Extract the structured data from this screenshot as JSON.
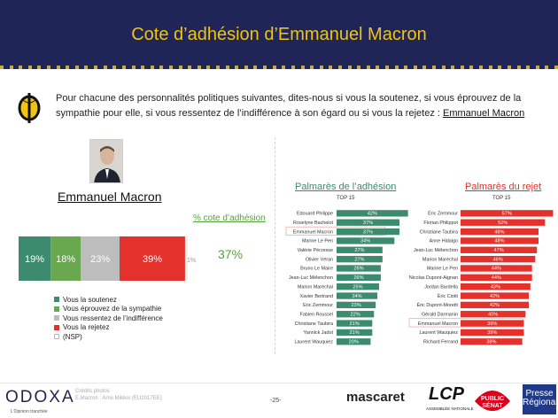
{
  "header": {
    "title": "Cote d’adhésion d’Emmanuel Macron"
  },
  "question": {
    "text": "Pour chacune des personnalités politiques suivantes, dites-nous si vous la soutenez, si vous éprouvez de la sympathie pour elle, si vous ressentez de l’indifférence à son égard ou si vous la rejetez : ",
    "subject": "Emmanuel Macron"
  },
  "left": {
    "person_name": "Emmanuel Macron",
    "pct_label": "% cote d’adhésion",
    "pct_value": "37%"
  },
  "stacked_bar": {
    "segments": [
      {
        "label": "19%",
        "value": 19,
        "color": "#3d8b6e"
      },
      {
        "label": "18%",
        "value": 18,
        "color": "#6aa84f"
      },
      {
        "label": "23%",
        "value": 23,
        "color": "#bdbdbd"
      },
      {
        "label": "39%",
        "value": 39,
        "color": "#e4312b"
      },
      {
        "label": "1%",
        "value": 1,
        "color": "#ffffff"
      }
    ]
  },
  "legend": {
    "items": [
      {
        "label": "Vous la soutenez",
        "color": "#3d8b6e"
      },
      {
        "label": "Vous éprouvez de la sympathie",
        "color": "#6aa84f"
      },
      {
        "label": "Vous ressentez de l’indifférence",
        "color": "#bdbdbd"
      },
      {
        "label": "Vous la rejetez",
        "color": "#e4312b"
      },
      {
        "label": "(NSP)",
        "color": "#ffffff"
      }
    ]
  },
  "chart_data": [
    {
      "type": "bar",
      "title": "Palmarès de l’adhésion",
      "subtitle": "TOP 15",
      "categories": [
        "Edouard Philippe",
        "Roselyne Bachelot",
        "Emmanuel Macron",
        "Marine Le Pen",
        "Valérie Pécresse",
        "Olivier Véran",
        "Bruno Le Maire",
        "Jean-Luc Mélenchon",
        "Marion Maréchal",
        "Xavier Bertrand",
        "Eric Zemmour",
        "Fabien Roussel",
        "Christiane Taubira",
        "Yannick Jadot",
        "Laurent Wauquiez"
      ],
      "values": [
        42,
        37,
        37,
        34,
        27,
        27,
        26,
        26,
        25,
        24,
        23,
        22,
        21,
        21,
        20
      ],
      "labels": [
        "42%",
        "37%",
        "37%",
        "34%",
        "27%",
        "27%",
        "26%",
        "26%",
        "25%",
        "24%",
        "23%",
        "22%",
        "21%",
        "21%",
        "20%"
      ],
      "highlight": "Emmanuel Macron",
      "color": "#3d8b6e",
      "xlim": [
        0,
        50
      ]
    },
    {
      "type": "bar",
      "title": "Palmarès du rejet",
      "subtitle": "TOP 15",
      "categories": [
        "Éric Zemmour",
        "Florian Philippot",
        "Christiane Taubira",
        "Anne Hidalgo",
        "Jean-Luc Mélenchon",
        "Marion Maréchal",
        "Marine Le Pen",
        "Nicolas Dupont-Aignan",
        "Jordan Bardella",
        "Éric Ciotti",
        "Éric Dupont-Moretti",
        "Gérald Darmanin",
        "Emmanuel Macron",
        "Laurent Wauquiez",
        "Richard Ferrand"
      ],
      "values": [
        57,
        52,
        48,
        48,
        47,
        46,
        44,
        44,
        43,
        42,
        42,
        40,
        39,
        39,
        38
      ],
      "labels": [
        "57%",
        "52%",
        "48%",
        "48%",
        "47%",
        "46%",
        "44%",
        "44%",
        "43%",
        "42%",
        "42%",
        "40%",
        "39%",
        "39%",
        "38%"
      ],
      "highlight": "Emmanuel Macron",
      "color": "#e4312b",
      "xlim": [
        0,
        60
      ]
    }
  ],
  "palmares": {
    "adhesion_title": "Palmarès de l’adhésion",
    "adhesion_sub": "TOP 15",
    "rejet_title": "Palmarès du rejet",
    "rejet_sub": "TOP 15",
    "adhesion_color": "#3d8b6e",
    "rejet_color": "#e4312b"
  },
  "footer": {
    "brand": "ODOXA",
    "tagline": "L’Opinion tranchée",
    "credits_1": "Crédits photos",
    "credits_2": "E.Macron : Arno Mikkor (EU2017EE)",
    "page": "-25-",
    "partner_1": "mascaret",
    "partner_2": "LCP",
    "partner_2_sub": "ASSEMBLÉE NATIONALE",
    "partner_3": "PUBLIC SÉNAT",
    "partner_4": "Presse Régionale"
  },
  "colors": {
    "header_bg": "#1f2557",
    "title": "#f1c40f",
    "accent_green": "#56a336"
  }
}
